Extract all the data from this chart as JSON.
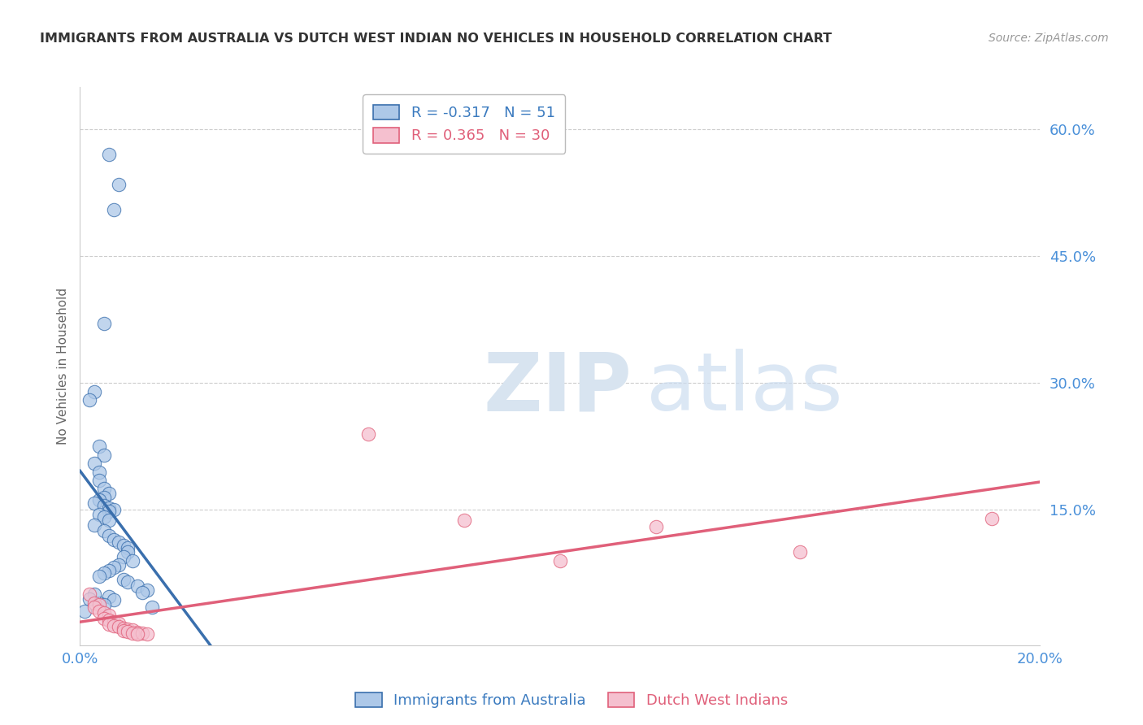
{
  "title": "IMMIGRANTS FROM AUSTRALIA VS DUTCH WEST INDIAN NO VEHICLES IN HOUSEHOLD CORRELATION CHART",
  "source": "Source: ZipAtlas.com",
  "ylabel": "No Vehicles in Household",
  "blue_label": "Immigrants from Australia",
  "pink_label": "Dutch West Indians",
  "blue_R": -0.317,
  "blue_N": 51,
  "pink_R": 0.365,
  "pink_N": 30,
  "blue_color": "#adc8e8",
  "blue_line_color": "#3a6fad",
  "pink_color": "#f5c0cf",
  "pink_line_color": "#e0607a",
  "watermark_zip": "ZIP",
  "watermark_atlas": "atlas",
  "background_color": "#ffffff",
  "x_lim": [
    0.0,
    0.2
  ],
  "y_lim": [
    -0.01,
    0.65
  ],
  "y_ticks": [
    0.0,
    0.15,
    0.3,
    0.45,
    0.6
  ],
  "y_tick_labels": [
    "",
    "15.0%",
    "30.0%",
    "45.0%",
    "60.0%"
  ],
  "blue_x": [
    0.006,
    0.008,
    0.007,
    0.005,
    0.003,
    0.002,
    0.004,
    0.005,
    0.003,
    0.004,
    0.004,
    0.005,
    0.006,
    0.005,
    0.004,
    0.003,
    0.005,
    0.006,
    0.007,
    0.006,
    0.004,
    0.005,
    0.006,
    0.003,
    0.005,
    0.006,
    0.007,
    0.008,
    0.009,
    0.01,
    0.01,
    0.009,
    0.011,
    0.008,
    0.007,
    0.006,
    0.005,
    0.004,
    0.009,
    0.01,
    0.012,
    0.014,
    0.013,
    0.006,
    0.007,
    0.004,
    0.005,
    0.015,
    0.003,
    0.002,
    0.001
  ],
  "blue_y": [
    0.57,
    0.535,
    0.505,
    0.37,
    0.29,
    0.28,
    0.225,
    0.215,
    0.205,
    0.195,
    0.185,
    0.175,
    0.17,
    0.165,
    0.162,
    0.158,
    0.155,
    0.152,
    0.15,
    0.148,
    0.145,
    0.142,
    0.138,
    0.132,
    0.125,
    0.12,
    0.115,
    0.112,
    0.108,
    0.105,
    0.1,
    0.095,
    0.09,
    0.085,
    0.082,
    0.078,
    0.075,
    0.072,
    0.068,
    0.065,
    0.06,
    0.055,
    0.052,
    0.048,
    0.044,
    0.04,
    0.038,
    0.035,
    0.05,
    0.045,
    0.03
  ],
  "pink_x": [
    0.002,
    0.003,
    0.004,
    0.003,
    0.004,
    0.005,
    0.006,
    0.005,
    0.006,
    0.007,
    0.008,
    0.006,
    0.007,
    0.008,
    0.009,
    0.01,
    0.011,
    0.009,
    0.01,
    0.012,
    0.011,
    0.013,
    0.014,
    0.012,
    0.06,
    0.08,
    0.1,
    0.12,
    0.15,
    0.19
  ],
  "pink_y": [
    0.05,
    0.04,
    0.038,
    0.035,
    0.03,
    0.028,
    0.025,
    0.022,
    0.02,
    0.018,
    0.016,
    0.015,
    0.013,
    0.012,
    0.01,
    0.009,
    0.008,
    0.007,
    0.006,
    0.005,
    0.004,
    0.004,
    0.003,
    0.003,
    0.24,
    0.138,
    0.09,
    0.13,
    0.1,
    0.14
  ]
}
